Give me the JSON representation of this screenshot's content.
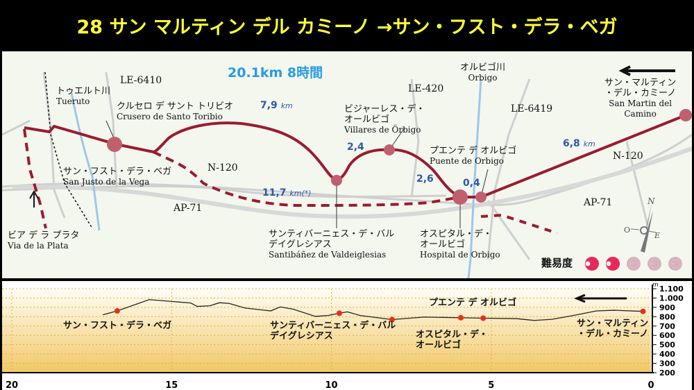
{
  "title": "28 サン マルティン デル カミーノ →サン・フスト・デラ・ベガ",
  "summary": "20.1km 8時間",
  "roads": {
    "le6410": "LE-6410",
    "le420": "LE-420",
    "le6419": "LE-6419",
    "n120a": "N-120",
    "n120b": "N-120",
    "ap71a": "AP-71",
    "ap71b": "AP-71"
  },
  "places": {
    "tueruto_jp": "トゥエルト川",
    "tueruto": "Tueruto",
    "crusero_jp": "クルセロ デ サント トリビオ",
    "crusero": "Crusero de Santo Toribio",
    "sanjusto_jp": "サン・フスト・デラ・ベガ",
    "sanjusto": "San Justo de la Vega",
    "via_jp": "ビア デ ラ プラタ",
    "via": "Via de la Plata",
    "santi_jp1": "サンティバーニェス・デ・バル",
    "santi_jp2": "デイグレシアス",
    "santi": "Santibáñez de Valdeiglesias",
    "villares_jp1": "ビジャーレス・デ・",
    "villares_jp2": "オールビゴ",
    "villares": "Villares de Örbigo",
    "orbigo_jp": "オルビゴ川",
    "orbigo": "Orbigo",
    "puente_jp": "プエンテ デ オルビゴ",
    "puente": "Puente de Orbigo",
    "hospital_jp1": "オスピタル・デ・",
    "hospital_jp2": "オールビゴ",
    "hospital": "Hospital de Orbigo",
    "sanmartin_jp1": "サン・マルティン",
    "sanmartin_jp2": "・デル・カミーノ",
    "sanmartin1": "San Martin del",
    "sanmartin2": "Camino"
  },
  "distances": {
    "d1": "7,9",
    "d1u": "km",
    "d2": "2,4",
    "d3": "2,6",
    "d4": "0,4",
    "d5": "6,8",
    "d5u": "km",
    "d6": "11,7",
    "d6u": "km(*)"
  },
  "compass": {
    "n": "N",
    "o": "O",
    "e": "E"
  },
  "difficulty": {
    "label": "難易度",
    "value": 2,
    "max": 5
  },
  "profile": {
    "unit": "m",
    "yticks": [
      "1.100",
      "1.000",
      "900",
      "800",
      "700",
      "600",
      "500",
      "400",
      "300",
      "200"
    ],
    "xticks": [
      "20",
      "15",
      "10",
      "5",
      "0"
    ],
    "direction_label": "プエンテ デ オルビゴ",
    "labels": {
      "a": "サン・フスト・デラ・ベガ",
      "b1": "サンティバーニェス・デ・バル",
      "b2": "デイグレシアス",
      "c1": "オスピタル・デ・",
      "c2": "オールビゴ",
      "d1": "サン・マルティン",
      "d2": "・デル・カミーノ"
    },
    "points": [
      [
        17.15,
        820
      ],
      [
        16.7,
        862
      ],
      [
        15.7,
        983
      ],
      [
        14.4,
        947
      ],
      [
        14.2,
        910
      ],
      [
        13.8,
        917
      ],
      [
        13.5,
        950
      ],
      [
        13.2,
        942
      ],
      [
        12.7,
        893
      ],
      [
        11.9,
        862
      ],
      [
        11.6,
        905
      ],
      [
        11.2,
        881
      ],
      [
        10.5,
        803
      ],
      [
        10.1,
        813
      ],
      [
        9.75,
        837
      ],
      [
        9.5,
        852
      ],
      [
        9.1,
        813
      ],
      [
        8.1,
        769
      ],
      [
        7.1,
        796
      ],
      [
        5.95,
        789
      ],
      [
        5.25,
        784
      ],
      [
        4.2,
        779
      ],
      [
        3.65,
        760
      ],
      [
        3.1,
        772
      ],
      [
        2.5,
        808
      ],
      [
        1.7,
        862
      ],
      [
        1.15,
        869
      ],
      [
        0.25,
        857
      ]
    ],
    "stops": [
      [
        16.7,
        862
      ],
      [
        9.75,
        837
      ],
      [
        8.1,
        769
      ],
      [
        5.95,
        789
      ],
      [
        5.25,
        784
      ],
      [
        0.25,
        857
      ]
    ]
  },
  "colors": {
    "route": "#9b1b30",
    "title": "#ffff33",
    "km": "#2e59a8",
    "river": "#9ec7e8"
  }
}
